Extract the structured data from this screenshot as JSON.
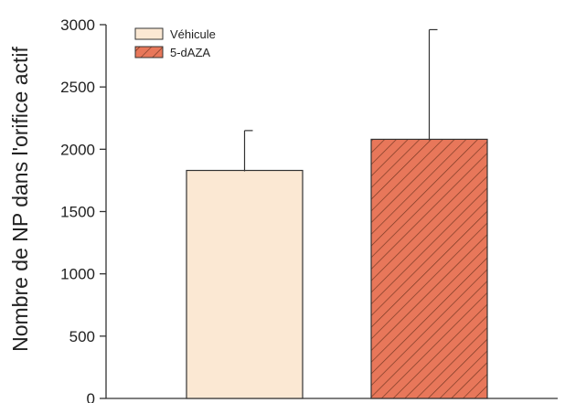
{
  "chart_data": {
    "type": "bar",
    "categories": [
      "Véhicule",
      "5-dAZA"
    ],
    "values": [
      1830,
      2080
    ],
    "errors": [
      320,
      880
    ],
    "title": "",
    "xlabel": "",
    "ylabel": "Nombre de NP dans l'orifice actif",
    "ylim": [
      0,
      3000
    ],
    "yticks": [
      "0",
      "500",
      "1000",
      "1500",
      "2000",
      "2500",
      "3000"
    ],
    "legend": {
      "placement": "top-left",
      "entries": [
        {
          "name": "Véhicule",
          "color": "#fbe8d3",
          "pattern": "solid"
        },
        {
          "name": "5-dAZA",
          "color": "#e8775a",
          "pattern": "diagonal-hatch"
        }
      ]
    },
    "grid": false
  }
}
